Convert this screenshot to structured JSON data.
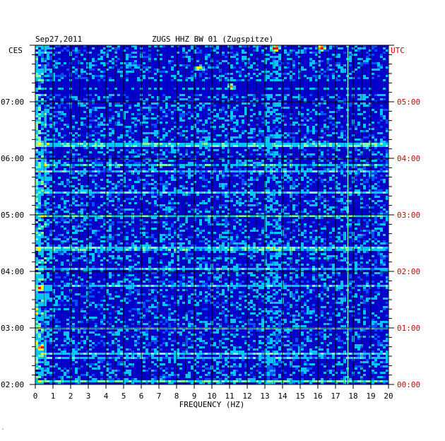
{
  "header": {
    "date": "Sep27,2011",
    "station": "ZUGS HHZ BW 01 (Zugspitze)",
    "left_zone": "CES",
    "right_zone": "UTC"
  },
  "footnote_mark": "″",
  "colors": {
    "background": "#0000c8",
    "deep": "#00007a",
    "cyan": "#00c8ff",
    "yellow": "#ffff00",
    "red": "#ff0000",
    "grid": "#000000",
    "utc_label": "#d00000"
  },
  "chart_data": {
    "type": "heatmap",
    "title": "ZUGS HHZ BW 01 (Zugspitze)",
    "xlabel": "FREQUENCY (HZ)",
    "ylabel": "",
    "xlim": [
      0,
      20
    ],
    "x_ticks": [
      "0",
      "1",
      "2",
      "3",
      "4",
      "5",
      "6",
      "7",
      "8",
      "9",
      "10",
      "11",
      "12",
      "13",
      "14",
      "15",
      "16",
      "17",
      "18",
      "19",
      "20"
    ],
    "y_left_ticks": [
      "07:00",
      "06:00",
      "05:00",
      "04:00",
      "03:00",
      "02:00"
    ],
    "y_right_ticks": [
      "05:00",
      "04:00",
      "03:00",
      "02:00",
      "01:00",
      "00:00"
    ],
    "y_left_tick_hours": [
      7,
      6,
      5,
      4,
      3,
      2
    ],
    "y_left_range_hours": [
      2,
      8
    ],
    "minor_ticks_per_hour": 6,
    "legend": "none",
    "grid": true,
    "colormap": [
      "#00007a",
      "#0000c8",
      "#0050ff",
      "#00c8ff",
      "#7fffb0",
      "#ffff00",
      "#ff8000",
      "#ff0000"
    ],
    "persistent_lines_hz": [
      17.7
    ],
    "hotspots": [
      {
        "hz": 13.6,
        "hour": 7.95,
        "level": 0.95
      },
      {
        "hz": 16.2,
        "hour": 7.95,
        "level": 1.0
      },
      {
        "hz": 11.1,
        "hour": 7.28,
        "level": 0.75
      },
      {
        "hz": 9.3,
        "hour": 7.6,
        "level": 0.6
      },
      {
        "hz": 0.3,
        "hour": 2.65,
        "level": 0.7
      },
      {
        "hz": 0.3,
        "hour": 3.7,
        "level": 0.6
      }
    ]
  }
}
